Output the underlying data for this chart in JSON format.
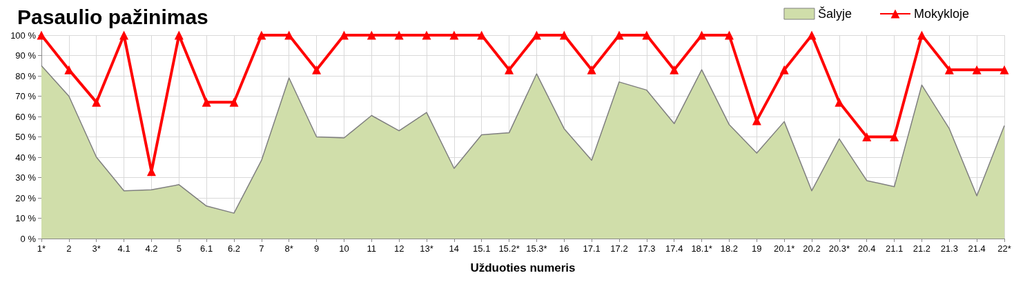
{
  "chart_data": {
    "type": "area",
    "title": "Pasaulio pažinimas",
    "xlabel": "Užduoties numeris",
    "categories": [
      "1*",
      "2",
      "3*",
      "4.1",
      "4.2",
      "5",
      "6.1",
      "6.2",
      "7",
      "8*",
      "9",
      "10",
      "11",
      "12",
      "13*",
      "14",
      "15.1",
      "15.2*",
      "15.3*",
      "16",
      "17.1",
      "17.2",
      "17.3",
      "17.4",
      "18.1*",
      "18.2",
      "19",
      "20.1*",
      "20.2",
      "20.3*",
      "20.4",
      "21.1",
      "21.2",
      "21.3",
      "21.4",
      "22*"
    ],
    "series": [
      {
        "name": "Šalyje",
        "type": "area",
        "color": "#d0deaa",
        "values": [
          85,
          70,
          40,
          23.5,
          24,
          26.5,
          16,
          12.5,
          38.5,
          79,
          50,
          49.5,
          60.5,
          53,
          62,
          34.5,
          51,
          52,
          81,
          54,
          38.5,
          77,
          73,
          56.5,
          83,
          56,
          42,
          57.5,
          23.5,
          49,
          28.5,
          25.5,
          75.5,
          54,
          21,
          55.5
        ]
      },
      {
        "name": "Mokykloje",
        "type": "line",
        "color": "#ff0000",
        "marker": "triangle",
        "values": [
          100,
          83,
          67,
          100,
          33,
          100,
          67,
          67,
          100,
          100,
          83,
          100,
          100,
          100,
          100,
          100,
          100,
          83,
          100,
          100,
          83,
          100,
          100,
          83,
          100,
          100,
          58,
          83,
          100,
          67,
          50,
          50,
          100,
          83,
          83,
          83
        ]
      }
    ],
    "ylim": [
      0,
      100
    ],
    "yticks": [
      {
        "value": 0,
        "label": "0 %"
      },
      {
        "value": 10,
        "label": "10 %"
      },
      {
        "value": 20,
        "label": "20 %"
      },
      {
        "value": 30,
        "label": "30 %"
      },
      {
        "value": 40,
        "label": "40 %"
      },
      {
        "value": 50,
        "label": "50 %"
      },
      {
        "value": 60,
        "label": "60 %"
      },
      {
        "value": 70,
        "label": "70 %"
      },
      {
        "value": 80,
        "label": "80 %"
      },
      {
        "value": 90,
        "label": "90 %"
      },
      {
        "value": 100,
        "label": "100 %"
      }
    ],
    "grid": true,
    "legend": "top right"
  }
}
